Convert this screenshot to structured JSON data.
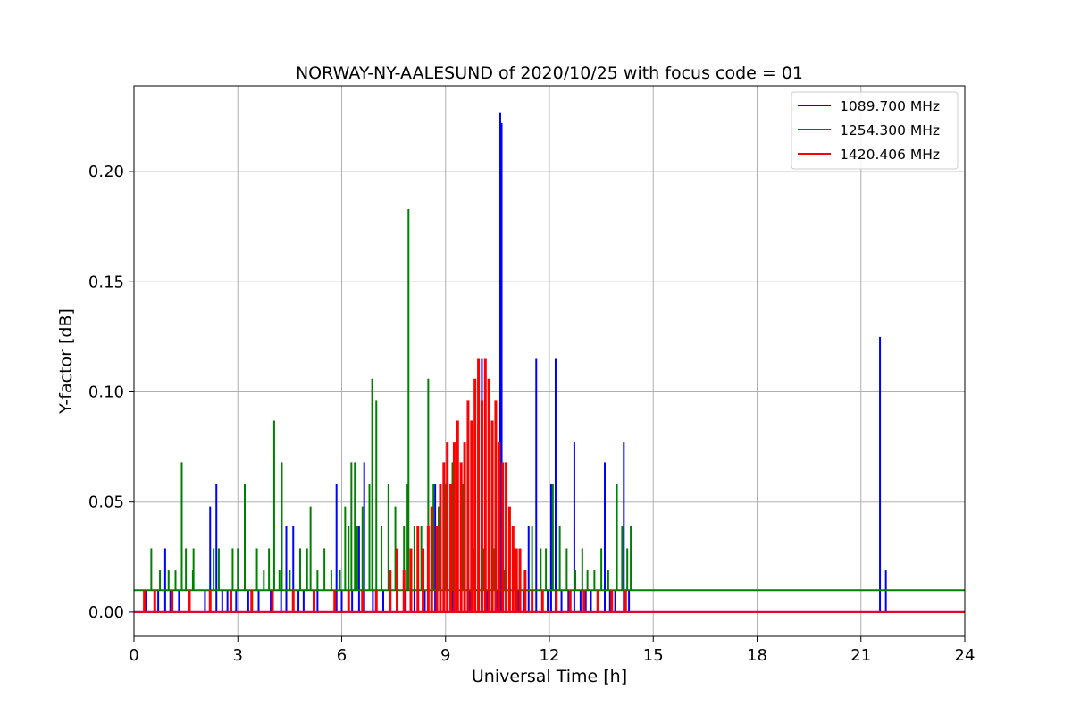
{
  "chart_data": {
    "type": "line",
    "title": "NORWAY-NY-AALESUND of 2020/10/25 with focus code = 01",
    "xlabel": "Universal Time [h]",
    "ylabel": "Y-factor [dB]",
    "xlim": [
      0,
      24
    ],
    "ylim": [
      -0.011,
      0.239
    ],
    "xticks": [
      0,
      3,
      6,
      9,
      12,
      15,
      18,
      21,
      24
    ],
    "xtick_labels": [
      "0",
      "3",
      "6",
      "9",
      "12",
      "15",
      "18",
      "21",
      "24"
    ],
    "yticks": [
      0.0,
      0.05,
      0.1,
      0.15,
      0.2
    ],
    "ytick_labels": [
      "0.00",
      "0.05",
      "0.10",
      "0.15",
      "0.20"
    ],
    "grid": true,
    "legend_position": "top-right",
    "series": [
      {
        "name": "1089.700 MHz",
        "color": "#0000ff",
        "baseline": 0.0,
        "spikes": [
          [
            0.35,
            0.01
          ],
          [
            0.7,
            0.01
          ],
          [
            0.9,
            0.029
          ],
          [
            1.05,
            0.01
          ],
          [
            1.3,
            0.01
          ],
          [
            2.05,
            0.01
          ],
          [
            2.2,
            0.048
          ],
          [
            2.38,
            0.058
          ],
          [
            2.55,
            0.01
          ],
          [
            2.7,
            0.01
          ],
          [
            2.95,
            0.01
          ],
          [
            3.3,
            0.01
          ],
          [
            3.6,
            0.01
          ],
          [
            3.95,
            0.01
          ],
          [
            4.25,
            0.01
          ],
          [
            4.4,
            0.039
          ],
          [
            4.6,
            0.039
          ],
          [
            4.75,
            0.01
          ],
          [
            4.9,
            0.01
          ],
          [
            5.3,
            0.01
          ],
          [
            5.85,
            0.058
          ],
          [
            6.0,
            0.01
          ],
          [
            6.3,
            0.01
          ],
          [
            6.5,
            0.039
          ],
          [
            6.65,
            0.068
          ],
          [
            6.9,
            0.01
          ],
          [
            7.2,
            0.01
          ],
          [
            7.6,
            0.01
          ],
          [
            7.85,
            0.01
          ],
          [
            8.1,
            0.01
          ],
          [
            8.4,
            0.01
          ],
          [
            8.7,
            0.058
          ],
          [
            8.95,
            0.039
          ],
          [
            9.2,
            0.01
          ],
          [
            9.45,
            0.058
          ],
          [
            9.7,
            0.01
          ],
          [
            9.85,
            0.01
          ],
          [
            10.05,
            0.115
          ],
          [
            10.2,
            0.01
          ],
          [
            10.35,
            0.01
          ],
          [
            10.5,
            0.01
          ],
          [
            10.58,
            0.227
          ],
          [
            10.62,
            0.222
          ],
          [
            10.75,
            0.01
          ],
          [
            10.95,
            0.01
          ],
          [
            11.1,
            0.01
          ],
          [
            11.25,
            0.01
          ],
          [
            11.4,
            0.039
          ],
          [
            11.62,
            0.115
          ],
          [
            11.8,
            0.01
          ],
          [
            11.95,
            0.01
          ],
          [
            12.05,
            0.058
          ],
          [
            12.18,
            0.115
          ],
          [
            12.35,
            0.01
          ],
          [
            12.55,
            0.01
          ],
          [
            12.72,
            0.077
          ],
          [
            12.9,
            0.01
          ],
          [
            13.05,
            0.01
          ],
          [
            13.2,
            0.01
          ],
          [
            13.4,
            0.01
          ],
          [
            13.6,
            0.068
          ],
          [
            13.75,
            0.01
          ],
          [
            13.9,
            0.01
          ],
          [
            14.15,
            0.077
          ],
          [
            14.3,
            0.01
          ],
          [
            21.55,
            0.125
          ],
          [
            21.72,
            0.019
          ]
        ]
      },
      {
        "name": "1254.300 MHz",
        "color": "#008000",
        "baseline": 0.01,
        "spikes": [
          [
            0.5,
            0.029
          ],
          [
            0.75,
            0.019
          ],
          [
            1.0,
            0.019
          ],
          [
            1.2,
            0.019
          ],
          [
            1.38,
            0.068
          ],
          [
            1.5,
            0.029
          ],
          [
            1.7,
            0.019
          ],
          [
            1.72,
            0.029
          ],
          [
            2.3,
            0.029
          ],
          [
            2.45,
            0.029
          ],
          [
            2.85,
            0.029
          ],
          [
            3.0,
            0.029
          ],
          [
            3.2,
            0.058
          ],
          [
            3.55,
            0.029
          ],
          [
            3.75,
            0.019
          ],
          [
            3.9,
            0.029
          ],
          [
            4.05,
            0.087
          ],
          [
            4.2,
            0.019
          ],
          [
            4.27,
            0.068
          ],
          [
            4.5,
            0.019
          ],
          [
            4.8,
            0.029
          ],
          [
            5.0,
            0.029
          ],
          [
            5.1,
            0.048
          ],
          [
            5.3,
            0.019
          ],
          [
            5.5,
            0.029
          ],
          [
            5.7,
            0.019
          ],
          [
            5.95,
            0.019
          ],
          [
            6.1,
            0.048
          ],
          [
            6.2,
            0.039
          ],
          [
            6.28,
            0.068
          ],
          [
            6.38,
            0.068
          ],
          [
            6.45,
            0.039
          ],
          [
            6.6,
            0.048
          ],
          [
            6.8,
            0.058
          ],
          [
            6.88,
            0.106
          ],
          [
            7.0,
            0.096
          ],
          [
            7.15,
            0.039
          ],
          [
            7.35,
            0.058
          ],
          [
            7.55,
            0.048
          ],
          [
            7.8,
            0.039
          ],
          [
            7.9,
            0.058
          ],
          [
            7.93,
            0.183
          ],
          [
            8.1,
            0.039
          ],
          [
            8.3,
            0.039
          ],
          [
            8.5,
            0.106
          ],
          [
            8.65,
            0.058
          ],
          [
            8.8,
            0.048
          ],
          [
            9.0,
            0.058
          ],
          [
            9.2,
            0.068
          ],
          [
            9.5,
            0.058
          ],
          [
            9.8,
            0.029
          ],
          [
            10.1,
            0.029
          ],
          [
            10.4,
            0.029
          ],
          [
            10.7,
            0.019
          ],
          [
            11.0,
            0.029
          ],
          [
            11.3,
            0.019
          ],
          [
            11.5,
            0.039
          ],
          [
            11.75,
            0.029
          ],
          [
            11.9,
            0.029
          ],
          [
            12.1,
            0.058
          ],
          [
            12.3,
            0.039
          ],
          [
            12.5,
            0.029
          ],
          [
            12.75,
            0.019
          ],
          [
            12.95,
            0.029
          ],
          [
            13.1,
            0.019
          ],
          [
            13.3,
            0.019
          ],
          [
            13.5,
            0.029
          ],
          [
            13.7,
            0.019
          ],
          [
            13.95,
            0.058
          ],
          [
            14.1,
            0.039
          ],
          [
            14.25,
            0.029
          ],
          [
            14.35,
            0.039
          ]
        ]
      },
      {
        "name": "1420.406 MHz",
        "color": "#ff0000",
        "baseline": 0.0,
        "spikes": [
          [
            0.3,
            0.01
          ],
          [
            0.6,
            0.01
          ],
          [
            1.1,
            0.01
          ],
          [
            1.6,
            0.01
          ],
          [
            2.2,
            0.01
          ],
          [
            2.8,
            0.01
          ],
          [
            3.4,
            0.01
          ],
          [
            4.0,
            0.01
          ],
          [
            4.6,
            0.01
          ],
          [
            5.2,
            0.01
          ],
          [
            5.8,
            0.01
          ],
          [
            6.2,
            0.01
          ],
          [
            6.6,
            0.01
          ],
          [
            7.0,
            0.01
          ],
          [
            7.4,
            0.019
          ],
          [
            7.6,
            0.029
          ],
          [
            7.8,
            0.019
          ],
          [
            8.0,
            0.029
          ],
          [
            8.2,
            0.039
          ],
          [
            8.35,
            0.029
          ],
          [
            8.5,
            0.039
          ],
          [
            8.6,
            0.048
          ],
          [
            8.75,
            0.039
          ],
          [
            8.85,
            0.058
          ],
          [
            8.95,
            0.068
          ],
          [
            9.05,
            0.077
          ],
          [
            9.15,
            0.058
          ],
          [
            9.25,
            0.077
          ],
          [
            9.35,
            0.087
          ],
          [
            9.45,
            0.068
          ],
          [
            9.55,
            0.077
          ],
          [
            9.65,
            0.096
          ],
          [
            9.75,
            0.087
          ],
          [
            9.85,
            0.106
          ],
          [
            9.95,
            0.115
          ],
          [
            10.05,
            0.096
          ],
          [
            10.15,
            0.115
          ],
          [
            10.25,
            0.106
          ],
          [
            10.35,
            0.087
          ],
          [
            10.45,
            0.096
          ],
          [
            10.55,
            0.077
          ],
          [
            10.65,
            0.068
          ],
          [
            10.75,
            0.068
          ],
          [
            10.85,
            0.048
          ],
          [
            10.95,
            0.039
          ],
          [
            11.05,
            0.029
          ],
          [
            11.15,
            0.029
          ],
          [
            11.3,
            0.019
          ],
          [
            11.5,
            0.01
          ],
          [
            11.8,
            0.01
          ],
          [
            12.2,
            0.01
          ],
          [
            12.6,
            0.01
          ],
          [
            13.0,
            0.01
          ],
          [
            13.4,
            0.01
          ],
          [
            13.8,
            0.01
          ],
          [
            14.2,
            0.01
          ]
        ]
      }
    ]
  }
}
